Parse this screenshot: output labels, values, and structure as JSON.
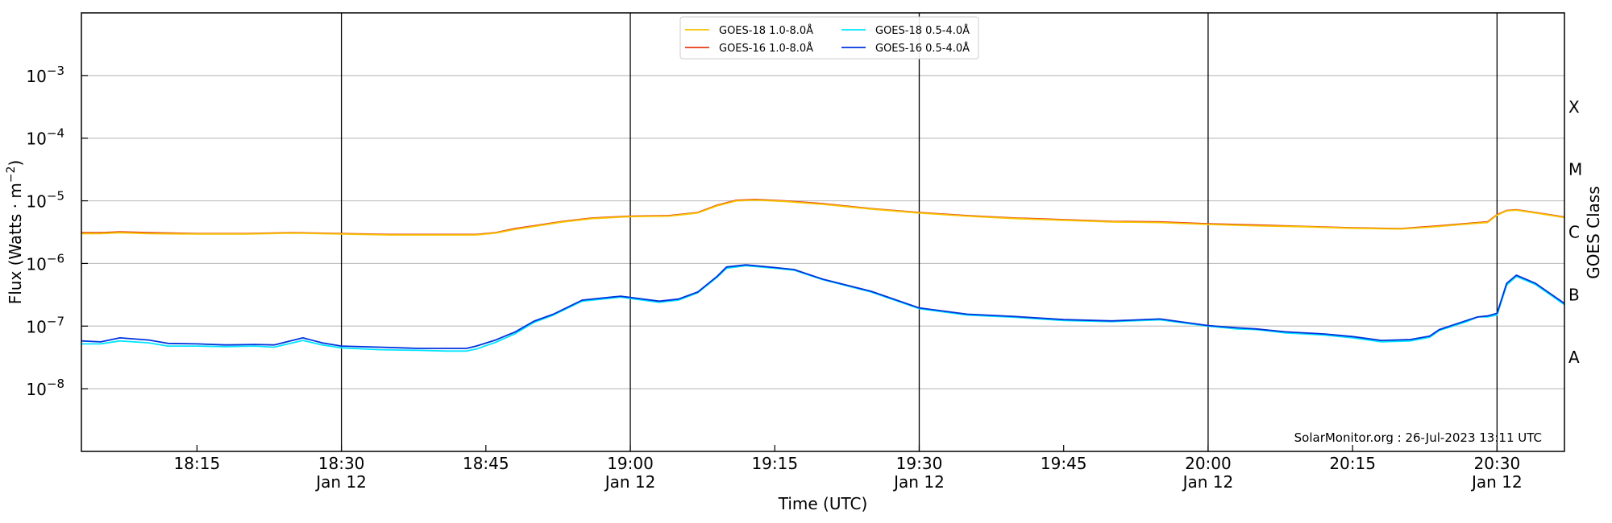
{
  "chart_data": {
    "type": "line",
    "xlabel": "Time (UTC)",
    "ylabel": "Flux (Watts · m⁻²)",
    "right_ylabel": "GOES Class",
    "y_scale": "log",
    "xlim": [
      "18:03",
      "20:37"
    ],
    "ylim": [
      1e-09,
      0.01
    ],
    "grid": "horizontal",
    "legend_position": "top-center",
    "watermark": "SolarMonitor.org : 26-Jul-2023 13:11 UTC",
    "y_ticks": [
      {
        "value": 1e-08,
        "base": "10",
        "exp": "−8"
      },
      {
        "value": 1e-07,
        "base": "10",
        "exp": "−7"
      },
      {
        "value": 1e-06,
        "base": "10",
        "exp": "−6"
      },
      {
        "value": 1e-05,
        "base": "10",
        "exp": "−5"
      },
      {
        "value": 0.0001,
        "base": "10",
        "exp": "−4"
      },
      {
        "value": 0.001,
        "base": "10",
        "exp": "−3"
      }
    ],
    "x_ticks": [
      {
        "time": "18:15",
        "label": "18:15",
        "date": ""
      },
      {
        "time": "18:30",
        "label": "18:30",
        "date": "Jan 12"
      },
      {
        "time": "18:45",
        "label": "18:45",
        "date": ""
      },
      {
        "time": "19:00",
        "label": "19:00",
        "date": "Jan 12"
      },
      {
        "time": "19:15",
        "label": "19:15",
        "date": ""
      },
      {
        "time": "19:30",
        "label": "19:30",
        "date": "Jan 12"
      },
      {
        "time": "19:45",
        "label": "19:45",
        "date": ""
      },
      {
        "time": "20:00",
        "label": "20:00",
        "date": "Jan 12"
      },
      {
        "time": "20:15",
        "label": "20:15",
        "date": ""
      },
      {
        "time": "20:30",
        "label": "20:30",
        "date": "Jan 12"
      }
    ],
    "vertical_lines": [
      "18:30",
      "19:00",
      "19:30",
      "20:00",
      "20:30"
    ],
    "goes_classes": [
      {
        "label": "X",
        "value": 0.000316
      },
      {
        "label": "M",
        "value": 3.16e-05
      },
      {
        "label": "C",
        "value": 3.16e-06
      },
      {
        "label": "B",
        "value": 3.16e-07
      },
      {
        "label": "A",
        "value": 3.16e-08
      }
    ],
    "legend": [
      {
        "name": "GOES-18 1.0-8.0Å",
        "color": "#f5c400"
      },
      {
        "name": "GOES-18 0.5-4.0Å",
        "color": "#00e5ff"
      },
      {
        "name": "GOES-16 1.0-8.0Å",
        "color": "#e63a14"
      },
      {
        "name": "GOES-16 0.5-4.0Å",
        "color": "#0033dd"
      }
    ],
    "series": [
      {
        "name": "GOES-16 1.0-8.0Å",
        "color": "#e63a14",
        "x": [
          "18:03",
          "18:05",
          "18:07",
          "18:10",
          "18:15",
          "18:20",
          "18:25",
          "18:30",
          "18:35",
          "18:40",
          "18:44",
          "18:46",
          "18:48",
          "18:50",
          "18:53",
          "18:56",
          "19:00",
          "19:04",
          "19:07",
          "19:09",
          "19:11",
          "19:13",
          "19:16",
          "19:20",
          "19:25",
          "19:30",
          "19:35",
          "19:40",
          "19:45",
          "19:50",
          "19:55",
          "20:00",
          "20:05",
          "20:10",
          "20:15",
          "20:20",
          "20:24",
          "20:28",
          "20:29",
          "20:30",
          "20:31",
          "20:32",
          "20:34",
          "20:37"
        ],
        "values": [
          3.1e-06,
          3.1e-06,
          3.2e-06,
          3.1e-06,
          3e-06,
          3e-06,
          3.1e-06,
          3e-06,
          2.9e-06,
          2.9e-06,
          2.9e-06,
          3.1e-06,
          3.6e-06,
          4e-06,
          4.7e-06,
          5.3e-06,
          5.7e-06,
          5.8e-06,
          6.5e-06,
          8.5e-06,
          1.02e-05,
          1.05e-05,
          1e-05,
          9e-06,
          7.5e-06,
          6.5e-06,
          5.8e-06,
          5.3e-06,
          5e-06,
          4.7e-06,
          4.6e-06,
          4.3e-06,
          4.1e-06,
          3.9e-06,
          3.7e-06,
          3.6e-06,
          4e-06,
          4.5e-06,
          4.6e-06,
          6e-06,
          7e-06,
          7.2e-06,
          6.5e-06,
          5.5e-06
        ]
      },
      {
        "name": "GOES-18 1.0-8.0Å",
        "color": "#f5c400",
        "x": [
          "18:03",
          "18:05",
          "18:07",
          "18:10",
          "18:15",
          "18:20",
          "18:25",
          "18:30",
          "18:35",
          "18:40",
          "18:44",
          "18:46",
          "18:48",
          "18:50",
          "18:53",
          "18:56",
          "19:00",
          "19:04",
          "19:07",
          "19:09",
          "19:11",
          "19:13",
          "19:16",
          "19:20",
          "19:25",
          "19:30",
          "19:35",
          "19:40",
          "19:45",
          "19:50",
          "19:55",
          "20:00",
          "20:05",
          "20:10",
          "20:15",
          "20:20",
          "20:24",
          "20:28",
          "20:29",
          "20:30",
          "20:31",
          "20:32",
          "20:34",
          "20:37"
        ],
        "values": [
          3e-06,
          3e-06,
          3.1e-06,
          3e-06,
          2.95e-06,
          2.95e-06,
          3.05e-06,
          2.95e-06,
          2.85e-06,
          2.85e-06,
          2.85e-06,
          3.05e-06,
          3.5e-06,
          3.9e-06,
          4.6e-06,
          5.2e-06,
          5.6e-06,
          5.7e-06,
          6.4e-06,
          8.3e-06,
          1e-05,
          1.03e-05,
          9.8e-06,
          8.8e-06,
          7.4e-06,
          6.4e-06,
          5.7e-06,
          5.2e-06,
          4.9e-06,
          4.6e-06,
          4.5e-06,
          4.2e-06,
          4e-06,
          3.85e-06,
          3.65e-06,
          3.55e-06,
          3.9e-06,
          4.4e-06,
          4.5e-06,
          5.9e-06,
          6.9e-06,
          7.1e-06,
          6.4e-06,
          5.4e-06
        ]
      },
      {
        "name": "GOES-18 0.5-4.0Å",
        "color": "#00e5ff",
        "x": [
          "18:03",
          "18:05",
          "18:07",
          "18:10",
          "18:12",
          "18:15",
          "18:18",
          "18:21",
          "18:23",
          "18:26",
          "18:28",
          "18:30",
          "18:34",
          "18:38",
          "18:41",
          "18:43",
          "18:44",
          "18:46",
          "18:48",
          "18:50",
          "18:52",
          "18:55",
          "18:59",
          "19:03",
          "19:05",
          "19:07",
          "19:09",
          "19:10",
          "19:12",
          "19:15",
          "19:17",
          "19:20",
          "19:25",
          "19:30",
          "19:35",
          "19:40",
          "19:45",
          "19:50",
          "19:55",
          "20:00",
          "20:03",
          "20:05",
          "20:08",
          "20:12",
          "20:15",
          "20:18",
          "20:21",
          "20:23",
          "20:24",
          "20:27",
          "20:28",
          "20:29",
          "20:30",
          "20:31",
          "20:32",
          "20:34",
          "20:37"
        ],
        "values": [
          5.2e-08,
          5.2e-08,
          5.8e-08,
          5.4e-08,
          4.8e-08,
          4.8e-08,
          4.7e-08,
          4.8e-08,
          4.6e-08,
          5.9e-08,
          5e-08,
          4.5e-08,
          4.2e-08,
          4.1e-08,
          4e-08,
          4e-08,
          4.3e-08,
          5.5e-08,
          7.5e-08,
          1.15e-07,
          1.5e-07,
          2.5e-07,
          2.9e-07,
          2.4e-07,
          2.6e-07,
          3.4e-07,
          6e-07,
          8.4e-07,
          9.2e-07,
          8.4e-07,
          7.8e-07,
          5.5e-07,
          3.5e-07,
          1.9e-07,
          1.5e-07,
          1.38e-07,
          1.23e-07,
          1.18e-07,
          1.26e-07,
          1e-07,
          9e-08,
          8.8e-08,
          7.8e-08,
          7.2e-08,
          6.5e-08,
          5.6e-08,
          5.8e-08,
          6.6e-08,
          8.5e-08,
          1.2e-07,
          1.4e-07,
          1.4e-07,
          1.5e-07,
          4.5e-07,
          6.2e-07,
          4.6e-07,
          2.2e-07
        ]
      },
      {
        "name": "GOES-16 0.5-4.0Å",
        "color": "#0033dd",
        "x": [
          "18:03",
          "18:05",
          "18:07",
          "18:10",
          "18:12",
          "18:15",
          "18:18",
          "18:21",
          "18:23",
          "18:26",
          "18:28",
          "18:30",
          "18:34",
          "18:38",
          "18:41",
          "18:43",
          "18:44",
          "18:46",
          "18:48",
          "18:50",
          "18:52",
          "18:55",
          "18:59",
          "19:03",
          "19:05",
          "19:07",
          "19:09",
          "19:10",
          "19:12",
          "19:15",
          "19:17",
          "19:20",
          "19:25",
          "19:30",
          "19:35",
          "19:40",
          "19:45",
          "19:50",
          "19:55",
          "20:00",
          "20:03",
          "20:05",
          "20:08",
          "20:12",
          "20:15",
          "20:18",
          "20:21",
          "20:23",
          "20:24",
          "20:27",
          "20:28",
          "20:29",
          "20:30",
          "20:31",
          "20:32",
          "20:34",
          "20:37"
        ],
        "values": [
          5.8e-08,
          5.6e-08,
          6.5e-08,
          6e-08,
          5.3e-08,
          5.2e-08,
          5e-08,
          5.1e-08,
          5e-08,
          6.5e-08,
          5.4e-08,
          4.8e-08,
          4.6e-08,
          4.4e-08,
          4.4e-08,
          4.4e-08,
          4.8e-08,
          6e-08,
          8e-08,
          1.2e-07,
          1.55e-07,
          2.6e-07,
          3e-07,
          2.5e-07,
          2.7e-07,
          3.5e-07,
          6.2e-07,
          8.8e-07,
          9.5e-07,
          8.6e-07,
          8e-07,
          5.6e-07,
          3.6e-07,
          1.95e-07,
          1.55e-07,
          1.42e-07,
          1.27e-07,
          1.21e-07,
          1.3e-07,
          1.02e-07,
          9.4e-08,
          9e-08,
          8.1e-08,
          7.5e-08,
          6.8e-08,
          5.9e-08,
          6.1e-08,
          6.9e-08,
          8.8e-08,
          1.25e-07,
          1.4e-07,
          1.45e-07,
          1.6e-07,
          4.8e-07,
          6.5e-07,
          4.8e-07,
          2.3e-07
        ]
      }
    ]
  }
}
